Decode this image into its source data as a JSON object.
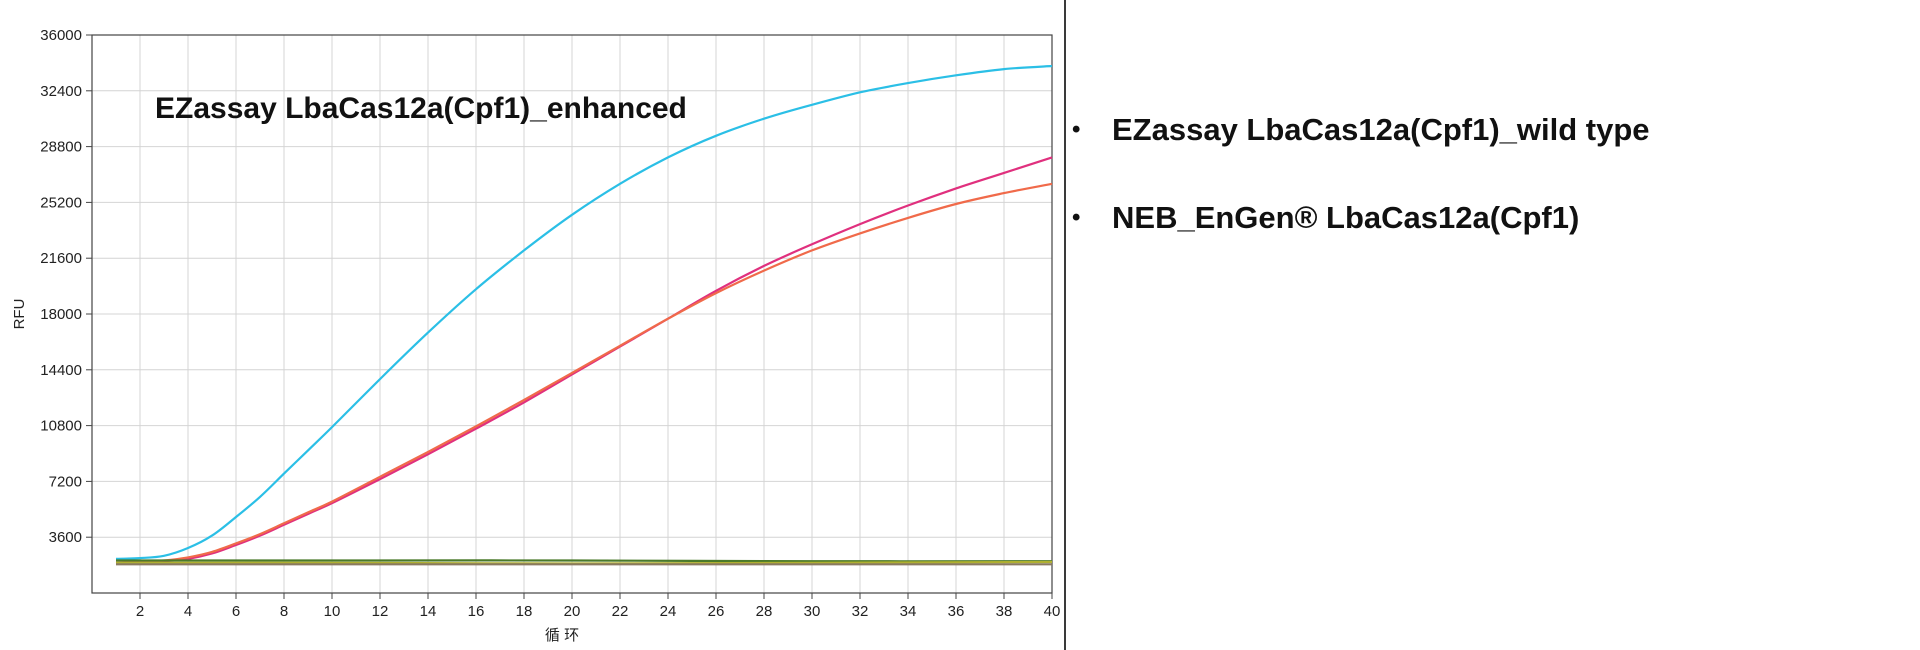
{
  "chart_data": {
    "type": "line",
    "title": "EZassay LbaCas12a(Cpf1)_enhanced",
    "xlabel": "循 环",
    "ylabel": "RFU",
    "xlim": [
      0,
      40
    ],
    "ylim": [
      0,
      36000
    ],
    "xticks": [
      2,
      4,
      6,
      8,
      10,
      12,
      14,
      16,
      18,
      20,
      22,
      24,
      26,
      28,
      30,
      32,
      34,
      36,
      38,
      40
    ],
    "yticks": [
      3600,
      7200,
      10800,
      14400,
      18000,
      21600,
      25200,
      28800,
      32400,
      36000
    ],
    "grid": true,
    "legend": [
      "EZassay LbaCas12a(Cpf1)_wild type",
      "NEB_EnGen® LbaCas12a(Cpf1)"
    ],
    "series": [
      {
        "color": "#2bbfe6",
        "x": [
          1,
          2,
          3,
          4,
          5,
          6,
          7,
          8,
          9,
          10,
          12,
          14,
          16,
          18,
          20,
          22,
          24,
          26,
          28,
          30,
          32,
          34,
          36,
          38,
          40
        ],
        "y": [
          2200,
          2250,
          2400,
          2900,
          3700,
          4900,
          6200,
          7700,
          9200,
          10700,
          13800,
          16800,
          19600,
          22100,
          24400,
          26400,
          28100,
          29500,
          30600,
          31500,
          32300,
          32900,
          33400,
          33800,
          34000
        ]
      },
      {
        "color": "#e0307e",
        "x": [
          1,
          2,
          3,
          4,
          5,
          6,
          7,
          8,
          9,
          10,
          12,
          14,
          16,
          18,
          20,
          22,
          24,
          26,
          28,
          30,
          32,
          34,
          36,
          38,
          40
        ],
        "y": [
          1900,
          1950,
          2050,
          2200,
          2550,
          3100,
          3700,
          4400,
          5100,
          5800,
          7350,
          8950,
          10600,
          12300,
          14100,
          15900,
          17700,
          19500,
          21100,
          22500,
          23800,
          25000,
          26100,
          27100,
          28100
        ]
      },
      {
        "color": "#f06a4a",
        "x": [
          1,
          2,
          3,
          4,
          5,
          6,
          7,
          8,
          9,
          10,
          12,
          14,
          16,
          18,
          20,
          22,
          24,
          26,
          28,
          30,
          32,
          34,
          36,
          38,
          40
        ],
        "y": [
          1950,
          2000,
          2100,
          2300,
          2650,
          3200,
          3800,
          4500,
          5200,
          5900,
          7500,
          9100,
          10750,
          12450,
          14200,
          15950,
          17700,
          19350,
          20800,
          22100,
          23200,
          24200,
          25100,
          25800,
          26400
        ]
      },
      {
        "color": "#4a7a2a",
        "x": [
          1,
          10,
          20,
          30,
          40
        ],
        "y": [
          2100,
          2100,
          2100,
          2050,
          2050
        ]
      },
      {
        "color": "#b0b030",
        "x": [
          1,
          10,
          20,
          30,
          40
        ],
        "y": [
          1950,
          1950,
          1900,
          1950,
          2000
        ]
      },
      {
        "color": "#8a7a60",
        "x": [
          1,
          10,
          20,
          30,
          40
        ],
        "y": [
          1850,
          1850,
          1850,
          1850,
          1850
        ]
      }
    ]
  }
}
